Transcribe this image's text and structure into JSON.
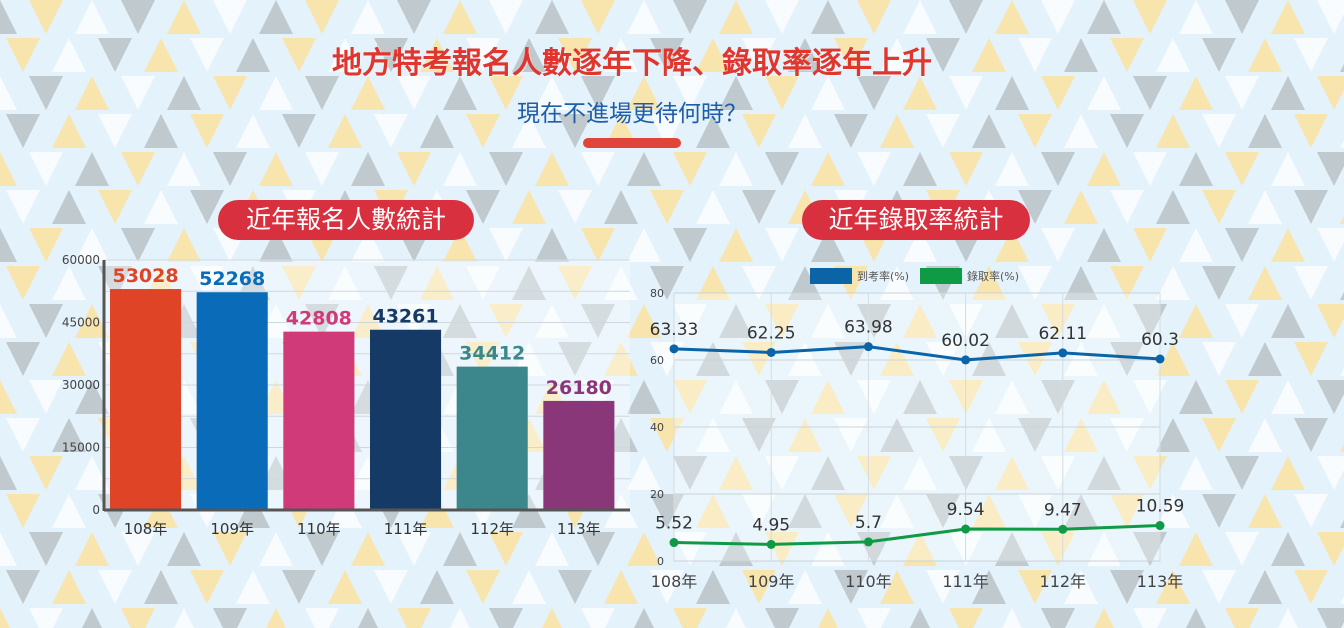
{
  "header": {
    "title": "地方特考報名人數逐年下降、錄取率逐年上升",
    "subtitle": "現在不進場更待何時？"
  },
  "chart_data": [
    {
      "type": "bar",
      "title": "近年報名人數統計",
      "categories": [
        "108年",
        "109年",
        "110年",
        "111年",
        "112年",
        "113年"
      ],
      "values": [
        53028,
        52268,
        42808,
        43261,
        34412,
        26180
      ],
      "colors": [
        "#e04427",
        "#0a6bb8",
        "#d13a78",
        "#153a66",
        "#3b878c",
        "#8a3779"
      ],
      "label_colors": [
        "#e04427",
        "#0a6bb8",
        "#d13a78",
        "#153a66",
        "#3b878c",
        "#8a3779"
      ],
      "yticks": [
        "0",
        "15000",
        "30000",
        "45000",
        "60000"
      ],
      "ylim": [
        0,
        60000
      ],
      "grid": true,
      "legend": "none"
    },
    {
      "type": "line",
      "title": "近年錄取率統計",
      "categories": [
        "108年",
        "109年",
        "110年",
        "111年",
        "112年",
        "113年"
      ],
      "series": [
        {
          "name": "到考率(%)",
          "values": [
            63.33,
            62.25,
            63.98,
            60.02,
            62.11,
            60.3
          ],
          "labels": [
            "63.33",
            "62.25",
            "63.98",
            "60.02",
            "62.11",
            "60.3"
          ],
          "color": "#0b64a8"
        },
        {
          "name": "錄取率(%)",
          "values": [
            5.52,
            4.95,
            5.7,
            9.54,
            9.47,
            10.59
          ],
          "labels": [
            "5.52",
            "4.95",
            "5.7",
            "9.54",
            "9.47",
            "10.59"
          ],
          "color": "#0f9a45"
        }
      ],
      "yticks": [
        "0",
        "20",
        "40",
        "60",
        "80"
      ],
      "ylim": [
        0,
        80
      ],
      "grid": true,
      "legend": "top"
    }
  ]
}
